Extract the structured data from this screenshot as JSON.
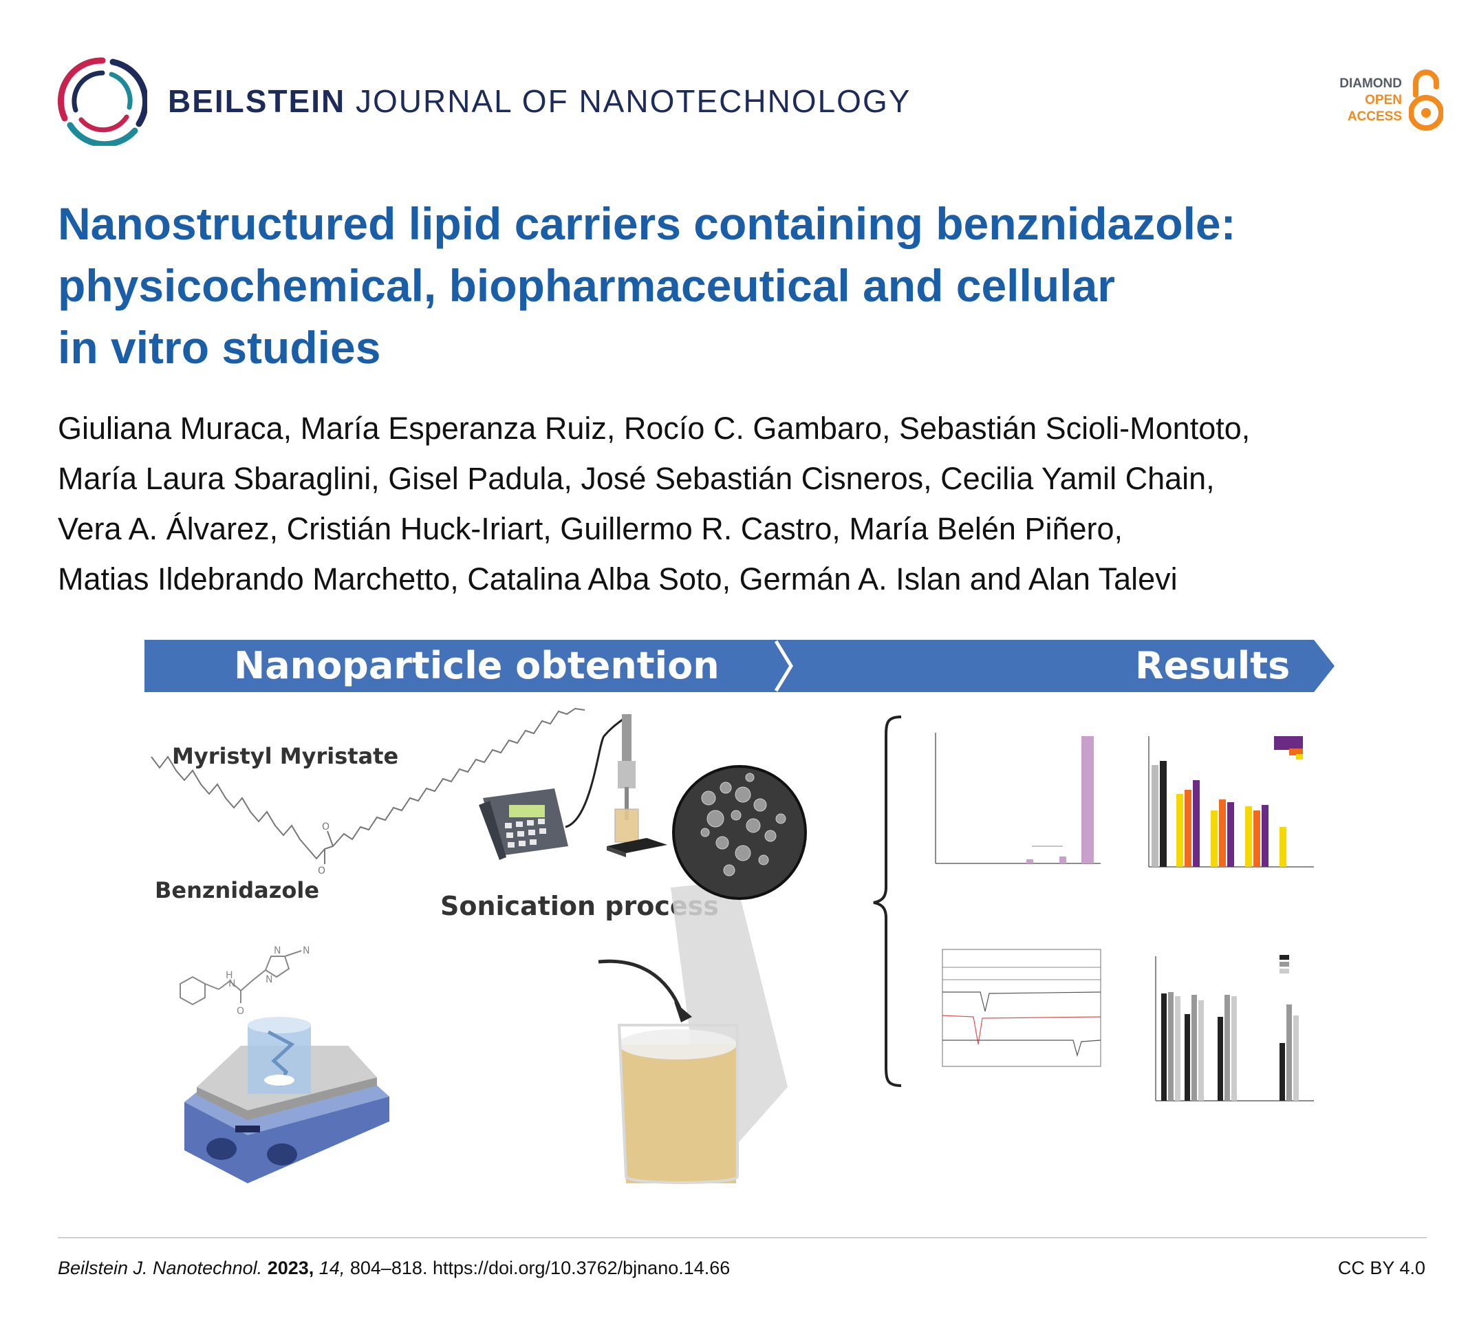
{
  "header": {
    "journal_bold": "BEILSTEIN",
    "journal_rest": " JOURNAL OF NANOTECHNOLOGY",
    "oa_badge": {
      "line1": "DIAMOND",
      "line2": "OPEN",
      "line3": "ACCESS"
    }
  },
  "article": {
    "title_line1": "Nanostructured lipid carriers containing benznidazole:",
    "title_line2": "physicochemical, biopharmaceutical and cellular",
    "title_line3": "in vitro studies",
    "author_lines": [
      "Giuliana Muraca, María Esperanza Ruiz, Rocío C. Gambaro, Sebastián Scioli-Montoto,",
      "María Laura Sbaraglini, Gisel Padula, José Sebastián Cisneros, Cecilia Yamil Chain,",
      "Vera A. Álvarez, Cristián Huck-Iriart, Guillermo R. Castro, María Belén Piñero,",
      "Matias Ildebrando Marchetto, Catalina Alba Soto, Germán A. Islan and Alan Talevi"
    ]
  },
  "graphical_abstract": {
    "banner_left": "Nanoparticle obtention",
    "banner_right": "Results",
    "label_myristyl": "Myristyl Myristate",
    "label_benznidazole": "Benznidazole",
    "label_sonication": "Sonication process",
    "colors": {
      "banner": "#4472b8",
      "bar_black": "#222222",
      "bar_yellow": "#f5d800",
      "bar_orange": "#f26b1d",
      "bar_purple": "#6b2a84",
      "liquid": "#e3c88e"
    }
  },
  "footer": {
    "journal_abbrev": "Beilstein J. Nanotechnol.",
    "year": "2023,",
    "volume": "14,",
    "pages": " 804–818.",
    "doi": " https://doi.org/10.3762/bjnano.14.66",
    "license": "CC BY 4.0"
  }
}
